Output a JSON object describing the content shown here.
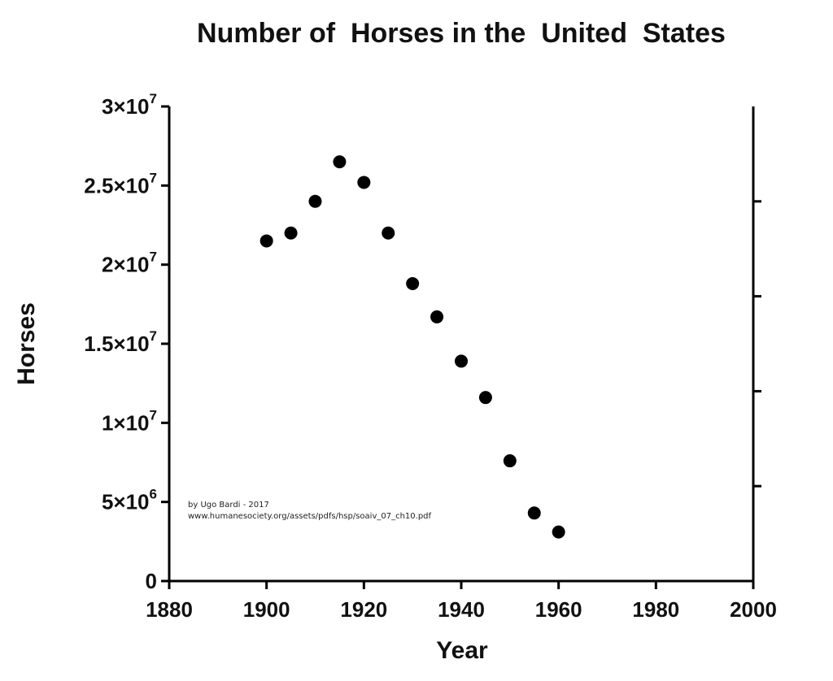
{
  "chart_data": {
    "type": "scatter",
    "title": "Number of  Horses in the  United  States",
    "xlabel": "Year",
    "ylabel": "Horses",
    "xlim": [
      1880,
      2000
    ],
    "ylim": [
      0,
      30000000
    ],
    "x_ticks": [
      1880,
      1900,
      1920,
      1940,
      1960,
      1980,
      2000
    ],
    "x_tick_labels": [
      "1880",
      "1900",
      "1920",
      "1940",
      "1960",
      "1980",
      "2000"
    ],
    "y_ticks": [
      {
        "value": 0,
        "mantissa": "0",
        "exponent": ""
      },
      {
        "value": 5000000,
        "mantissa": "5×10",
        "exponent": "6"
      },
      {
        "value": 10000000,
        "mantissa": "1×10",
        "exponent": "7"
      },
      {
        "value": 15000000,
        "mantissa": "1.5×10",
        "exponent": "7"
      },
      {
        "value": 20000000,
        "mantissa": "2×10",
        "exponent": "7"
      },
      {
        "value": 25000000,
        "mantissa": "2.5×10",
        "exponent": "7"
      },
      {
        "value": 30000000,
        "mantissa": "3×10",
        "exponent": "7"
      }
    ],
    "series": [
      {
        "marker": "filled-circle",
        "color": "#000000",
        "x": [
          1900,
          1905,
          1910,
          1915,
          1920,
          1925,
          1930,
          1935,
          1940,
          1945,
          1950,
          1955,
          1960
        ],
        "y": [
          21500000,
          22000000,
          24000000,
          26500000,
          25200000,
          22000000,
          18800000,
          16700000,
          13900000,
          11600000,
          7600000,
          4300000,
          3100000
        ]
      }
    ],
    "annotations": [
      "by Ugo Bardi - 2017",
      "www.humanesociety.org/assets/pdfs/hsp/soaiv_07_ch10.pdf"
    ],
    "grid": false,
    "legend": "none"
  }
}
